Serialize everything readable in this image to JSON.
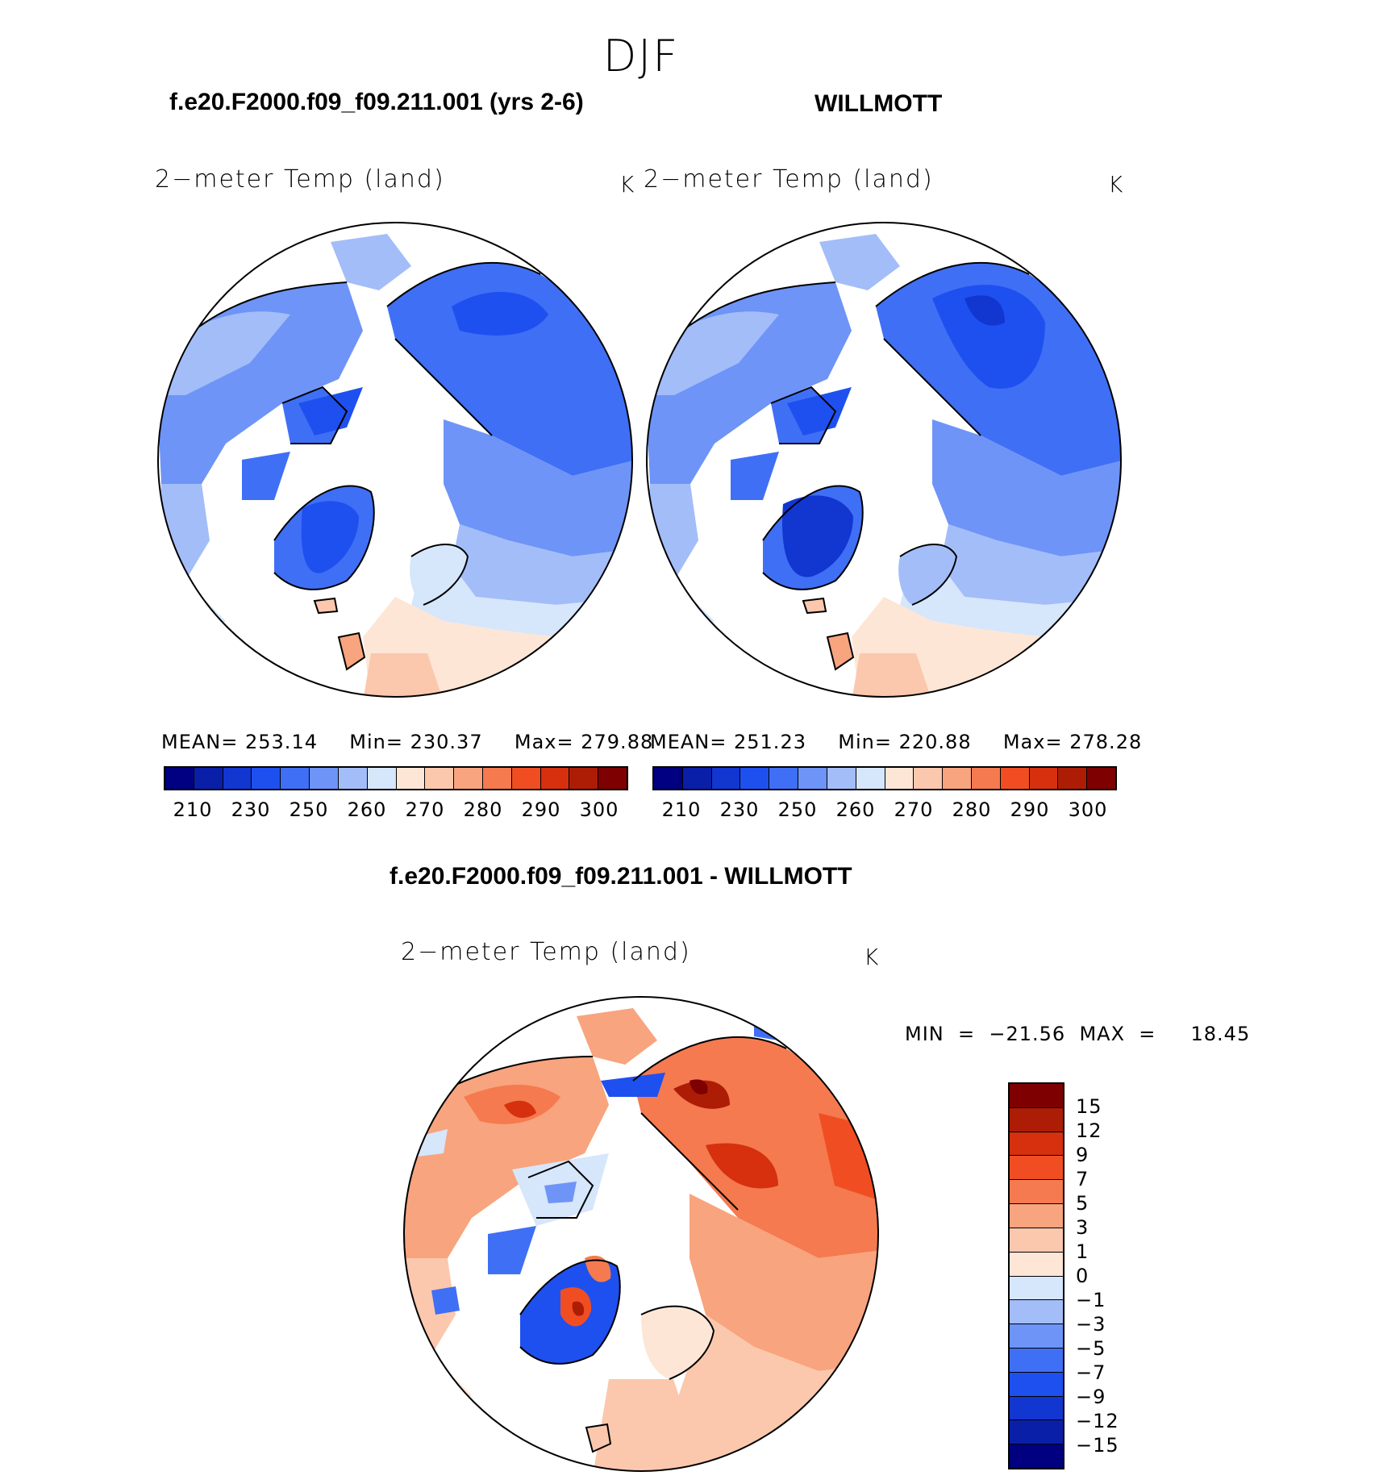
{
  "figure": {
    "season": "DJF"
  },
  "panels": [
    {
      "title": "f.e20.F2000.f09_f09.211.001 (yrs 2-6)",
      "variable": "2−meter Temp (land)",
      "units": "K",
      "stats": {
        "mean_label": "MEAN=",
        "mean": "253.14",
        "min_label": "Min=",
        "min": "230.37",
        "max_label": "Max=",
        "max": "279.88"
      },
      "palette": "absolute"
    },
    {
      "title": "WILLMOTT",
      "variable": "2−meter Temp (land)",
      "units": "K",
      "stats": {
        "mean_label": "MEAN=",
        "mean": "251.23",
        "min_label": "Min=",
        "min": "220.88",
        "max_label": "Max=",
        "max": "278.28"
      },
      "palette": "absolute"
    }
  ],
  "difference": {
    "title": "f.e20.F2000.f09_f09.211.001 - WILLMOTT",
    "variable": "2−meter Temp (land)",
    "units": "K",
    "minmax_text": "MIN  =  −21.56  MAX  =     18.45"
  },
  "colorbars": {
    "absolute": {
      "colors": [
        "#000080",
        "#0a1fa8",
        "#1236d0",
        "#1e50f0",
        "#3f6ff5",
        "#6e94f7",
        "#a3bdf9",
        "#d6e6fb",
        "#fde6d6",
        "#fbc8ad",
        "#f8a47e",
        "#f57a4f",
        "#f04e22",
        "#d6300f",
        "#ad1d06",
        "#7e0000"
      ],
      "tick_labels": [
        "210",
        "230",
        "250",
        "260",
        "270",
        "280",
        "290",
        "300"
      ]
    },
    "difference": {
      "colors": [
        "#7e0000",
        "#ad1d06",
        "#d6300f",
        "#f04e22",
        "#f57a4f",
        "#f8a47e",
        "#fbc8ad",
        "#fde6d6",
        "#d6e6fb",
        "#a3bdf9",
        "#6e94f7",
        "#3f6ff5",
        "#1e50f0",
        "#1236d0",
        "#0a1fa8",
        "#000080"
      ],
      "tick_labels": [
        "15",
        "12",
        "9",
        "7",
        "5",
        "3",
        "1",
        "0",
        "−1",
        "−3",
        "−5",
        "−7",
        "−9",
        "−12",
        "−15"
      ]
    }
  }
}
